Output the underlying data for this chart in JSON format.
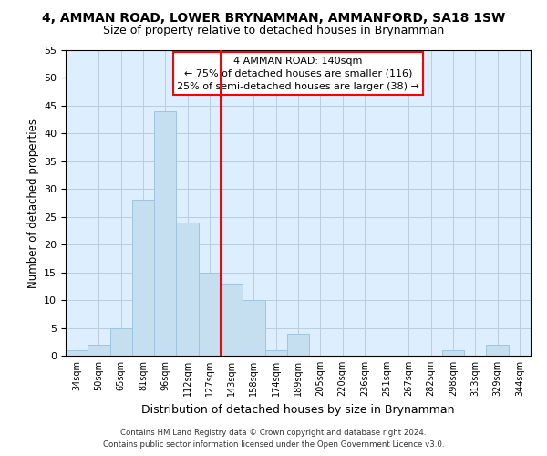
{
  "title_line1": "4, AMMAN ROAD, LOWER BRYNAMMAN, AMMANFORD, SA18 1SW",
  "title_line2": "Size of property relative to detached houses in Brynamman",
  "xlabel": "Distribution of detached houses by size in Brynamman",
  "ylabel": "Number of detached properties",
  "footer_line1": "Contains HM Land Registry data © Crown copyright and database right 2024.",
  "footer_line2": "Contains public sector information licensed under the Open Government Licence v3.0.",
  "bin_labels": [
    "34sqm",
    "50sqm",
    "65sqm",
    "81sqm",
    "96sqm",
    "112sqm",
    "127sqm",
    "143sqm",
    "158sqm",
    "174sqm",
    "189sqm",
    "205sqm",
    "220sqm",
    "236sqm",
    "251sqm",
    "267sqm",
    "282sqm",
    "298sqm",
    "313sqm",
    "329sqm",
    "344sqm"
  ],
  "bar_heights": [
    1,
    2,
    5,
    28,
    44,
    24,
    15,
    13,
    10,
    1,
    4,
    0,
    0,
    0,
    0,
    0,
    0,
    1,
    0,
    2,
    0
  ],
  "bar_color": "#c6dff0",
  "bar_edge_color": "#a0c4e0",
  "ylim": [
    0,
    55
  ],
  "yticks": [
    0,
    5,
    10,
    15,
    20,
    25,
    30,
    35,
    40,
    45,
    50,
    55
  ],
  "vline_bin_index": 7,
  "vline_color": "red",
  "annotation_title": "4 AMMAN ROAD: 140sqm",
  "annotation_line2": "← 75% of detached houses are smaller (116)",
  "annotation_line3": "25% of semi-detached houses are larger (38) →",
  "background_color": "#ffffff",
  "axes_facecolor": "#ddeeff",
  "grid_color": "#bbccdd"
}
